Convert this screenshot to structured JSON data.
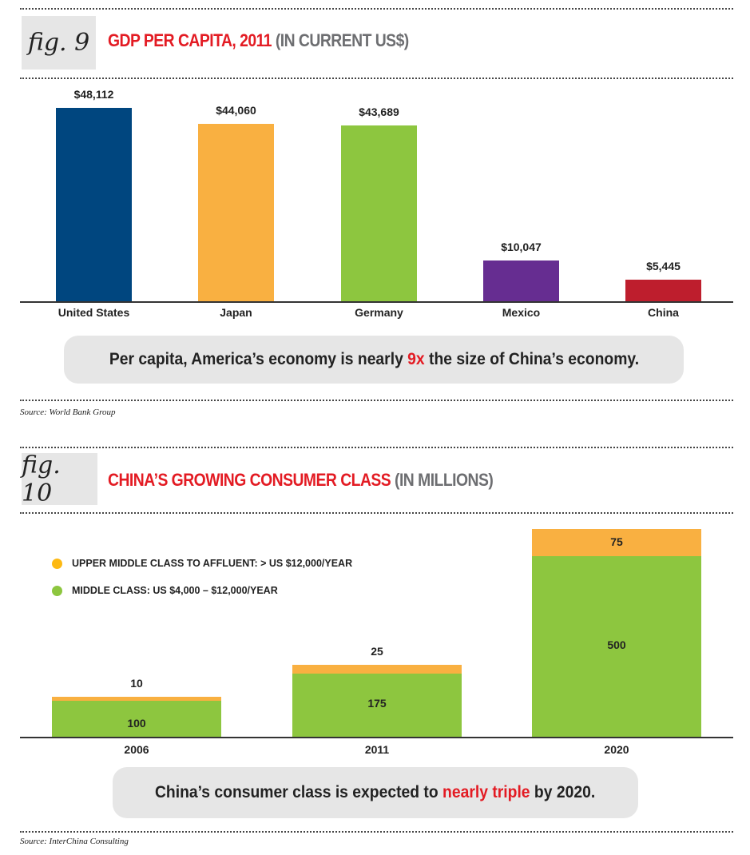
{
  "fig9": {
    "fig_label": "fig. 9",
    "title_red": "GDP PER CAPITA, 2011",
    "title_gray": "(IN CURRENT US$)",
    "callout": {
      "before": "Per capita, America’s economy is nearly ",
      "highlight": "9x",
      "after": " the size of China’s economy."
    },
    "source": "Source: World Bank Group"
  },
  "fig10": {
    "fig_label": "fig. 10",
    "title_red": "CHINA’S GROWING CONSUMER CLASS",
    "title_gray": "(IN MILLIONS)",
    "callout": {
      "before": "China’s consumer class is expected to ",
      "highlight": "nearly triple",
      "after": " by 2020."
    },
    "source": "Source: InterChina Consulting"
  },
  "chart_data": [
    {
      "type": "bar",
      "title": "GDP PER CAPITA, 2011 (IN CURRENT US$)",
      "categories": [
        "United States",
        "Japan",
        "Germany",
        "Mexico",
        "China"
      ],
      "values": [
        48112,
        44060,
        43689,
        10047,
        5445
      ],
      "value_labels": [
        "$48,112",
        "$44,060",
        "$43,689",
        "$10,047",
        "$5,445"
      ],
      "colors": [
        "#00467f",
        "#f9b041",
        "#8dc63f",
        "#662d91",
        "#be1e2d"
      ],
      "ylim": [
        0,
        48112
      ],
      "grid": false
    },
    {
      "type": "bar",
      "stacked": true,
      "title": "CHINA’S GROWING CONSUMER CLASS (IN MILLIONS)",
      "categories": [
        "2006",
        "2011",
        "2020"
      ],
      "series": [
        {
          "name": "MIDDLE CLASS: US $4,000 – $12,000/YEAR",
          "values": [
            100,
            175,
            500
          ],
          "color": "#8dc63f"
        },
        {
          "name": "UPPER MIDDLE CLASS TO AFFLUENT: > US $12,000/YEAR",
          "values": [
            10,
            25,
            75
          ],
          "color": "#f9b041"
        }
      ],
      "legend_placement": "top-left",
      "ylim": [
        0,
        575
      ],
      "grid": false
    }
  ]
}
